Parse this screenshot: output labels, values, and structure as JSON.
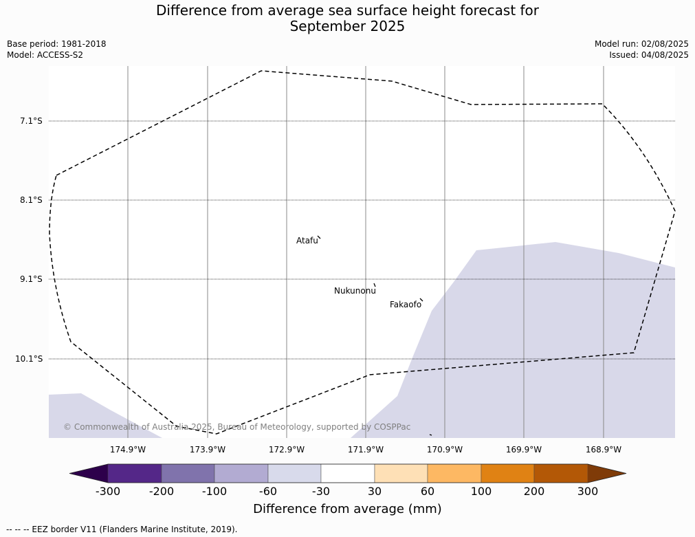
{
  "title": {
    "line1": "Difference from average sea surface height forecast for",
    "line2": "September 2025"
  },
  "meta_left": {
    "base_period": "Base period: 1981-2018",
    "model": "Model: ACCESS-S2"
  },
  "meta_right": {
    "model_run": "Model run: 02/08/2025",
    "issued": "Issued: 04/08/2025"
  },
  "map": {
    "latitude_labels": [
      "7.1°S",
      "8.1°S",
      "9.1°S",
      "10.1°S"
    ],
    "longitude_labels": [
      "174.9°W",
      "173.9°W",
      "172.9°W",
      "171.9°W",
      "170.9°W",
      "169.9°W",
      "168.9°W"
    ],
    "places": [
      {
        "name": "Atafu",
        "lon_label": "172.5°W",
        "lat_label": "8.6°S"
      },
      {
        "name": "Nukunonu",
        "lon_label": "171.8°W",
        "lat_label": "9.2°S"
      },
      {
        "name": "Fakaofo",
        "lon_label": "171.2°W",
        "lat_label": "9.4°S"
      }
    ],
    "anomaly_shading": {
      "category": "-60 to -30 mm",
      "color": "#d8d8e9"
    },
    "eez_line_color": "#000000",
    "copyright": "© Commonwealth of Australia 2025, Bureau of Meteorology, supported by COSPPac"
  },
  "colorbar": {
    "title": "Difference from average (mm)",
    "ticks": [
      "-300",
      "-200",
      "-100",
      "-60",
      "-30",
      "30",
      "60",
      "100",
      "200",
      "300"
    ],
    "colors": [
      "#2d004b",
      "#542788",
      "#8073ac",
      "#b2abd2",
      "#d8daeb",
      "#ffffff",
      "#fee0b6",
      "#fdb863",
      "#e08214",
      "#b35806",
      "#7f3b08"
    ]
  },
  "footnote": "--  --  -- EEZ border V11 (Flanders Marine Institute, 2019)."
}
